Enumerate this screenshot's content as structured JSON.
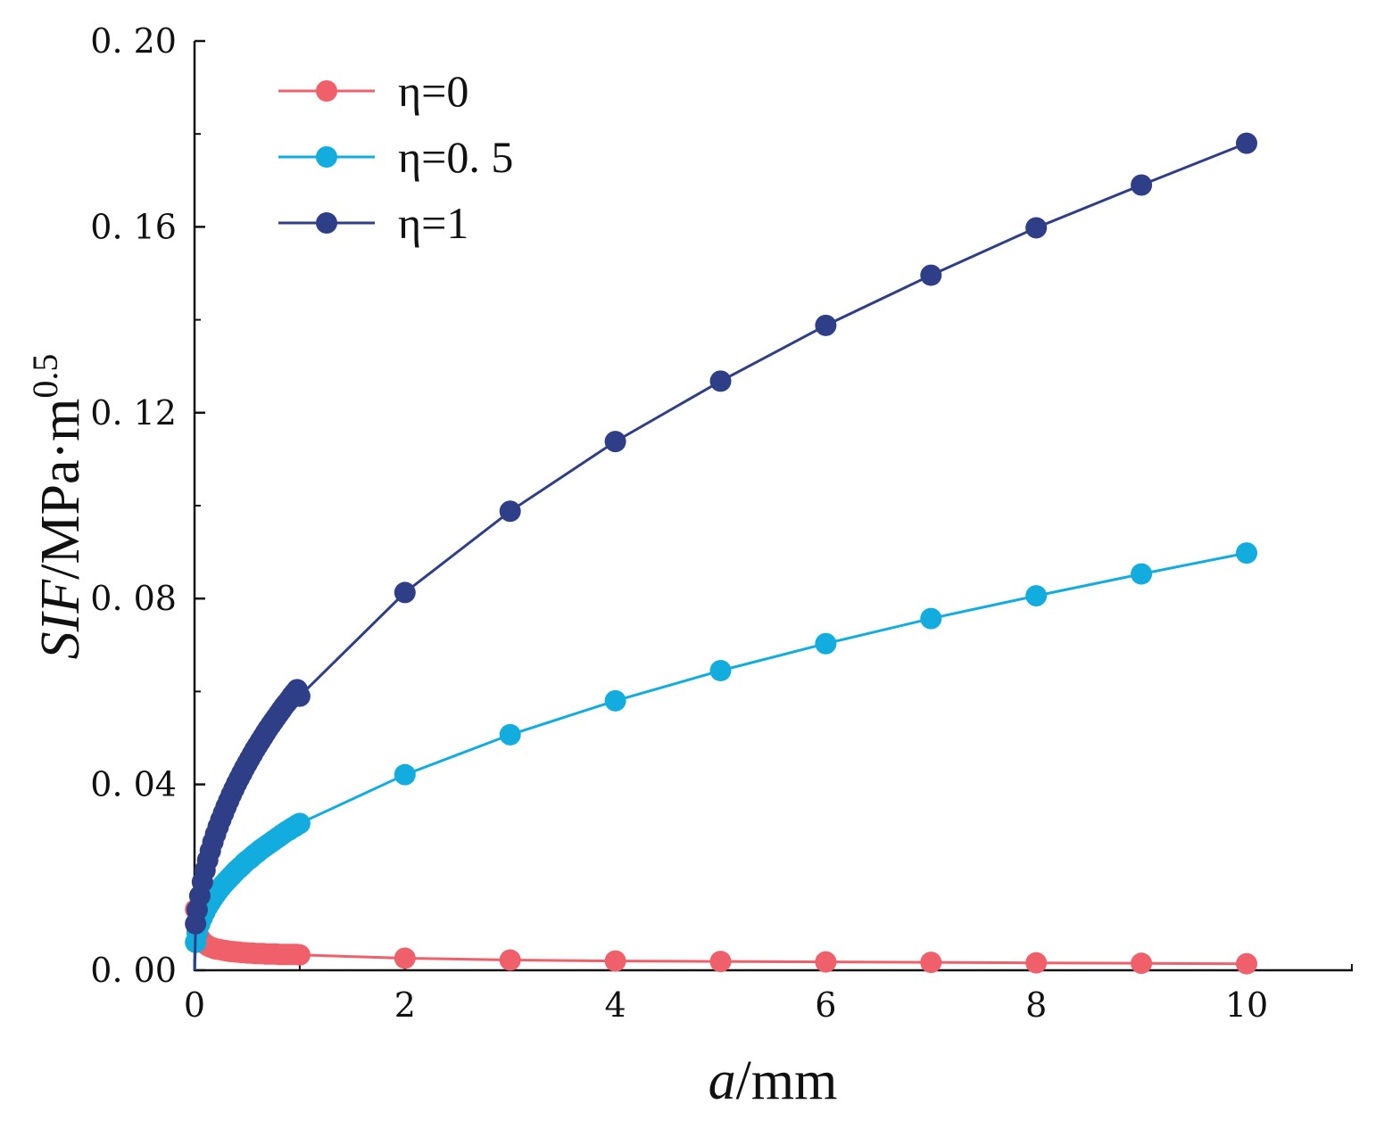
{
  "chart_data": {
    "type": "line",
    "title": "",
    "xlabel": {
      "var": "a",
      "unit": "/mm"
    },
    "ylabel": {
      "var": "SIF",
      "unit": "/MPa·m",
      "sup": "0.5"
    },
    "xlim": [
      0,
      11
    ],
    "ylim": [
      0,
      0.2
    ],
    "xticks": [
      0,
      2,
      4,
      6,
      8,
      10
    ],
    "yticks": [
      0.0,
      0.04,
      0.08,
      0.12,
      0.16,
      0.2
    ],
    "ytick_labels": [
      "0. 00",
      "0. 04",
      "0. 08",
      "0. 12",
      "0. 16",
      "0. 20"
    ],
    "xtick_labels": [
      "0",
      "2",
      "4",
      "6",
      "8",
      "10"
    ],
    "grid": false,
    "legend_position": "top-left",
    "x": [
      0.01,
      0.025,
      0.05,
      0.075,
      0.1,
      0.125,
      0.15,
      0.175,
      0.2,
      0.225,
      0.25,
      0.275,
      0.3,
      0.325,
      0.35,
      0.375,
      0.4,
      0.425,
      0.45,
      0.475,
      0.5,
      0.525,
      0.55,
      0.575,
      0.6,
      0.625,
      0.65,
      0.675,
      0.7,
      0.725,
      0.75,
      0.775,
      0.8,
      0.825,
      0.85,
      0.875,
      0.9,
      0.925,
      0.95,
      0.975,
      1,
      2,
      3,
      4,
      5,
      6,
      7,
      8,
      9,
      10
    ],
    "series": [
      {
        "name": "η=0",
        "color": "#f0606a",
        "values": [
          0.0131,
          0.0088,
          0.007,
          0.0062,
          0.0057,
          0.0053,
          0.005,
          0.0048,
          0.0046,
          0.0045,
          0.0044,
          0.0043,
          0.0042,
          0.0041,
          0.004,
          0.004,
          0.0039,
          0.0039,
          0.0038,
          0.0038,
          0.0037,
          0.0037,
          0.0037,
          0.0036,
          0.0036,
          0.0036,
          0.0036,
          0.0035,
          0.0035,
          0.0035,
          0.0035,
          0.0035,
          0.0034,
          0.0034,
          0.0034,
          0.0034,
          0.0034,
          0.0034,
          0.0034,
          0.0034,
          0.0033,
          0.0026,
          0.0022,
          0.002,
          0.0019,
          0.0018,
          0.0017,
          0.0016,
          0.0015,
          0.0014
        ]
      },
      {
        "name": "η=0. 5",
        "color": "#12acdf",
        "values": [
          0.006,
          0.008,
          0.01,
          0.0114,
          0.0126,
          0.0137,
          0.0146,
          0.0155,
          0.0163,
          0.0171,
          0.0178,
          0.0185,
          0.0191,
          0.0197,
          0.0203,
          0.0209,
          0.0215,
          0.022,
          0.0225,
          0.0231,
          0.0236,
          0.024,
          0.0245,
          0.025,
          0.0254,
          0.0259,
          0.0263,
          0.0267,
          0.0271,
          0.0275,
          0.0279,
          0.0283,
          0.0287,
          0.0291,
          0.0295,
          0.0299,
          0.0302,
          0.0306,
          0.0309,
          0.0313,
          0.0316,
          0.0421,
          0.0507,
          0.058,
          0.0645,
          0.0703,
          0.0757,
          0.0806,
          0.0853,
          0.0898
        ]
      },
      {
        "name": "η=1",
        "color": "#2e3f87",
        "values": [
          0.01,
          0.013,
          0.016,
          0.019,
          0.0215,
          0.0237,
          0.0257,
          0.0276,
          0.0293,
          0.0309,
          0.0324,
          0.0338,
          0.0352,
          0.0365,
          0.0378,
          0.039,
          0.0402,
          0.0413,
          0.0424,
          0.0435,
          0.0445,
          0.0455,
          0.0465,
          0.0475,
          0.0484,
          0.0493,
          0.0502,
          0.0511,
          0.052,
          0.0528,
          0.0536,
          0.0544,
          0.0552,
          0.056,
          0.0568,
          0.0575,
          0.0582,
          0.059,
          0.0597,
          0.0604,
          0.059,
          0.0813,
          0.0988,
          0.1138,
          0.1268,
          0.1388,
          0.1496,
          0.1598,
          0.169,
          0.178
        ]
      }
    ]
  }
}
